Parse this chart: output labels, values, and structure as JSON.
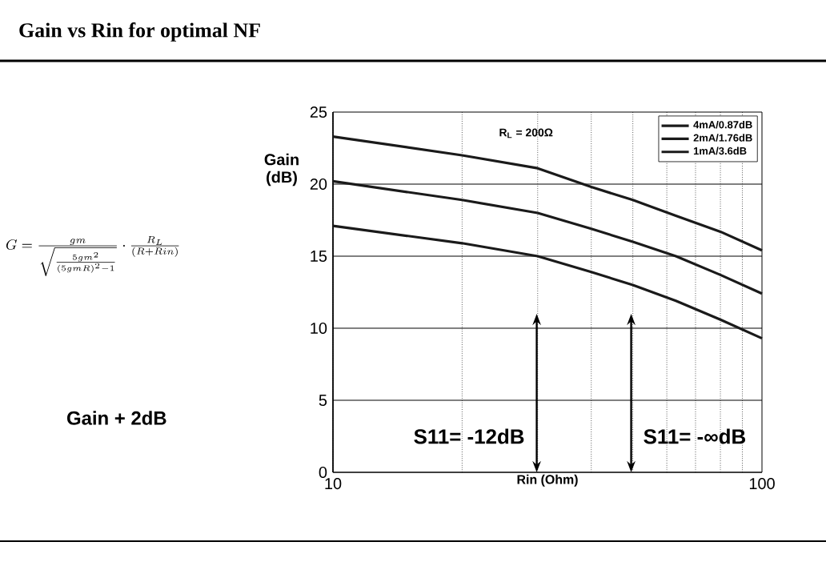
{
  "chart_data": {
    "type": "line",
    "title": "Gain vs Rin for optimal NF",
    "xlabel": "Rin (Ohm)",
    "ylabel": "Gain (dB)",
    "x": [
      10,
      20,
      30,
      40,
      50,
      63,
      80,
      100
    ],
    "series": [
      {
        "name": "4mA/0.87dB",
        "color": "#1a1a1a",
        "values": [
          23.3,
          22.0,
          21.1,
          19.8,
          18.9,
          17.8,
          16.7,
          15.4
        ]
      },
      {
        "name": "2mA/1.76dB",
        "color": "#1a1a1a",
        "values": [
          20.2,
          18.9,
          18.0,
          16.9,
          16.0,
          15.0,
          13.7,
          12.4
        ]
      },
      {
        "name": "1mA/3.6dB",
        "color": "#1a1a1a",
        "values": [
          17.1,
          15.9,
          15.0,
          13.9,
          13.0,
          11.9,
          10.6,
          9.3
        ]
      }
    ],
    "xlim": [
      10,
      100
    ],
    "ylim": [
      0,
      25
    ],
    "xticks": [
      10,
      100
    ],
    "yticks": [
      0,
      5,
      10,
      15,
      20,
      25
    ],
    "log": "x",
    "grid": true,
    "legend": "top right",
    "marker": "none",
    "line_style": "solid",
    "annotations": [
      "R$_{L}$ = 200Ω",
      "S11= -12dB",
      "S11= -∞dB",
      "Gain + 2dB",
      "G = \\frac{gm}{\\sqrt{\\frac{5gm^2}{(5gmR)^2-1}}}\\cdot\\frac{R_L}{(R+Rin)}"
    ]
  }
}
